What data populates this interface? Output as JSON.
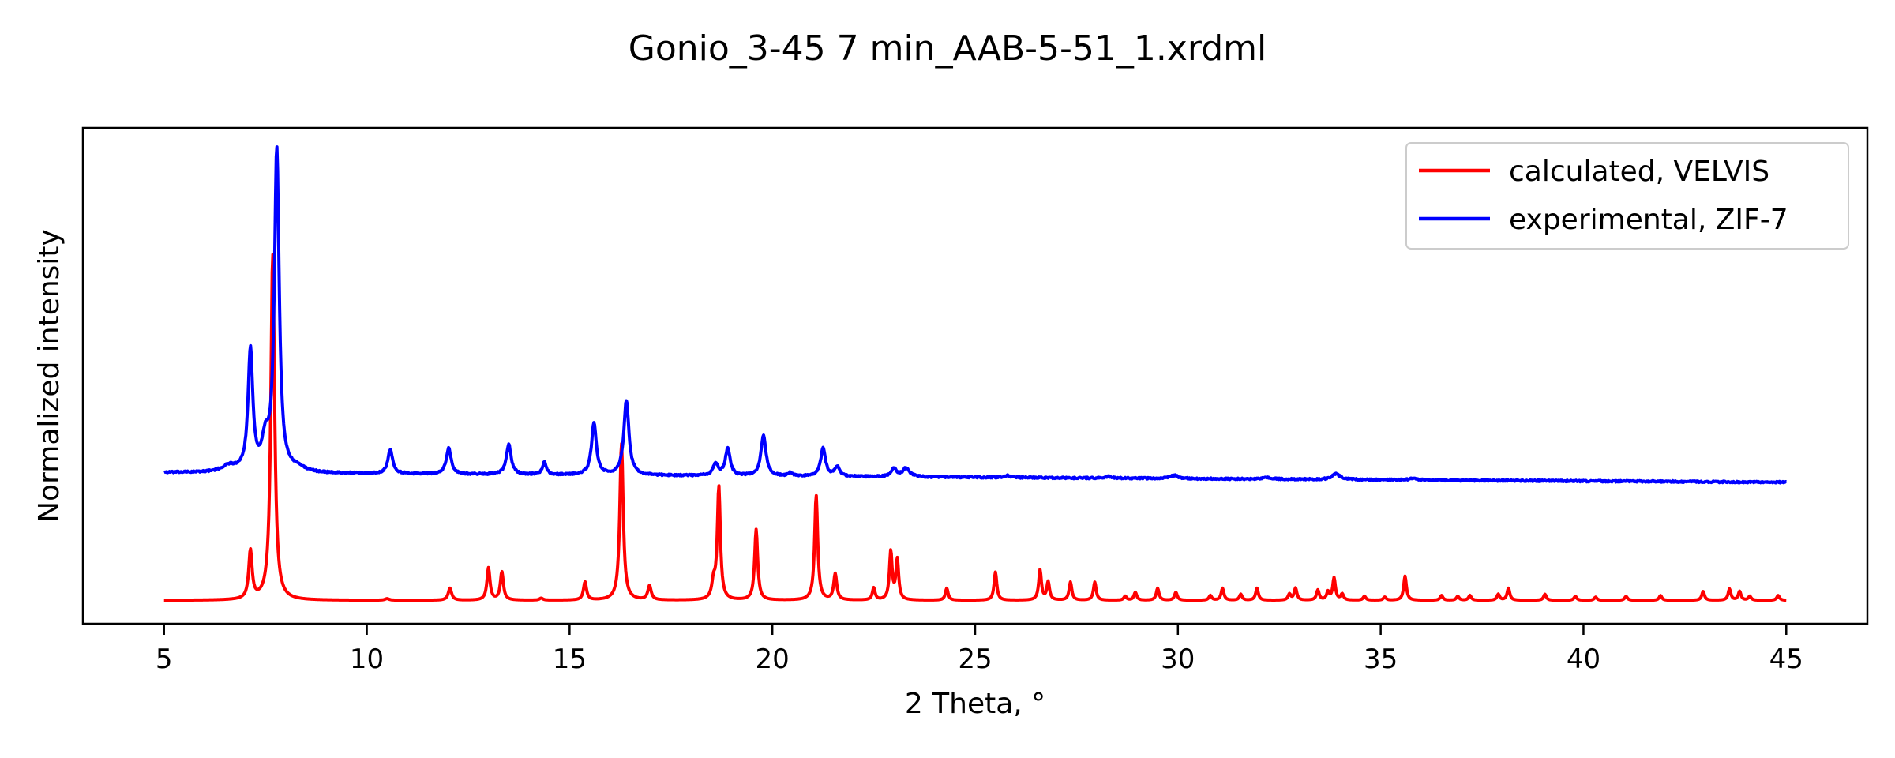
{
  "chart_data": {
    "type": "line",
    "title": "Gonio_3-45 7 min_AAB-5-51_1.xrdml",
    "xlabel": "2 Theta, °",
    "ylabel": "Normalized intensity",
    "xlim": [
      3,
      47
    ],
    "ylim": [
      -0.05,
      1.18
    ],
    "xticks": [
      5,
      10,
      15,
      20,
      25,
      30,
      35,
      40,
      45
    ],
    "x_range": [
      5,
      45
    ],
    "y_ticks_visible": false,
    "grid": false,
    "legend_position": "top-right",
    "series": [
      {
        "name": "calculated, VELVIS",
        "color": "#ff0000",
        "baseline": 0.008,
        "slope": 0.0,
        "noise": 0.0,
        "peaks": [
          [
            7.13,
            0.12,
            0.05
          ],
          [
            7.68,
            0.86,
            0.055
          ],
          [
            10.5,
            0.004,
            0.06
          ],
          [
            12.05,
            0.03,
            0.05
          ],
          [
            13.0,
            0.08,
            0.045
          ],
          [
            13.33,
            0.07,
            0.045
          ],
          [
            14.3,
            0.005,
            0.05
          ],
          [
            15.38,
            0.045,
            0.045
          ],
          [
            16.28,
            0.39,
            0.05
          ],
          [
            16.97,
            0.035,
            0.05
          ],
          [
            18.55,
            0.04,
            0.05
          ],
          [
            18.68,
            0.28,
            0.045
          ],
          [
            19.6,
            0.175,
            0.045
          ],
          [
            21.08,
            0.26,
            0.045
          ],
          [
            21.55,
            0.065,
            0.045
          ],
          [
            22.5,
            0.03,
            0.04
          ],
          [
            22.92,
            0.12,
            0.04
          ],
          [
            23.08,
            0.1,
            0.04
          ],
          [
            24.3,
            0.03,
            0.04
          ],
          [
            25.5,
            0.07,
            0.04
          ],
          [
            26.6,
            0.075,
            0.04
          ],
          [
            26.8,
            0.045,
            0.04
          ],
          [
            27.35,
            0.045,
            0.04
          ],
          [
            27.95,
            0.045,
            0.04
          ],
          [
            28.7,
            0.01,
            0.04
          ],
          [
            28.95,
            0.02,
            0.04
          ],
          [
            29.5,
            0.03,
            0.04
          ],
          [
            29.95,
            0.02,
            0.04
          ],
          [
            30.8,
            0.012,
            0.04
          ],
          [
            31.1,
            0.03,
            0.04
          ],
          [
            31.55,
            0.015,
            0.04
          ],
          [
            31.95,
            0.03,
            0.04
          ],
          [
            32.75,
            0.015,
            0.04
          ],
          [
            32.9,
            0.03,
            0.04
          ],
          [
            33.45,
            0.025,
            0.04
          ],
          [
            33.7,
            0.02,
            0.04
          ],
          [
            33.85,
            0.055,
            0.04
          ],
          [
            34.05,
            0.015,
            0.04
          ],
          [
            34.6,
            0.01,
            0.04
          ],
          [
            35.1,
            0.008,
            0.04
          ],
          [
            35.6,
            0.06,
            0.04
          ],
          [
            36.5,
            0.012,
            0.04
          ],
          [
            36.9,
            0.01,
            0.04
          ],
          [
            37.2,
            0.012,
            0.04
          ],
          [
            37.9,
            0.015,
            0.04
          ],
          [
            38.15,
            0.03,
            0.04
          ],
          [
            39.05,
            0.015,
            0.04
          ],
          [
            39.8,
            0.01,
            0.04
          ],
          [
            40.3,
            0.008,
            0.04
          ],
          [
            41.05,
            0.01,
            0.04
          ],
          [
            41.9,
            0.012,
            0.04
          ],
          [
            42.95,
            0.022,
            0.04
          ],
          [
            43.6,
            0.028,
            0.04
          ],
          [
            43.85,
            0.022,
            0.04
          ],
          [
            44.1,
            0.01,
            0.04
          ],
          [
            44.8,
            0.012,
            0.04
          ]
        ]
      },
      {
        "name": "experimental, ZIF-7",
        "color": "#0000ff",
        "baseline": 0.325,
        "slope": -0.0006,
        "noise": 0.002,
        "peaks": [
          [
            6.6,
            0.015,
            0.2
          ],
          [
            7.13,
            0.3,
            0.07
          ],
          [
            7.5,
            0.07,
            0.1
          ],
          [
            7.78,
            0.8,
            0.07
          ],
          [
            8.3,
            0.01,
            0.2
          ],
          [
            10.58,
            0.06,
            0.07
          ],
          [
            12.02,
            0.065,
            0.07
          ],
          [
            13.5,
            0.075,
            0.07
          ],
          [
            14.38,
            0.03,
            0.06
          ],
          [
            15.6,
            0.13,
            0.07
          ],
          [
            16.4,
            0.185,
            0.075
          ],
          [
            18.6,
            0.03,
            0.07
          ],
          [
            18.9,
            0.068,
            0.07
          ],
          [
            19.78,
            0.1,
            0.075
          ],
          [
            20.45,
            0.008,
            0.06
          ],
          [
            21.25,
            0.07,
            0.07
          ],
          [
            21.6,
            0.025,
            0.07
          ],
          [
            23.0,
            0.02,
            0.08
          ],
          [
            23.3,
            0.022,
            0.1
          ],
          [
            25.8,
            0.005,
            0.1
          ],
          [
            28.3,
            0.004,
            0.1
          ],
          [
            29.9,
            0.008,
            0.12
          ],
          [
            32.2,
            0.004,
            0.12
          ],
          [
            33.9,
            0.014,
            0.12
          ],
          [
            35.8,
            0.004,
            0.1
          ]
        ]
      }
    ]
  }
}
